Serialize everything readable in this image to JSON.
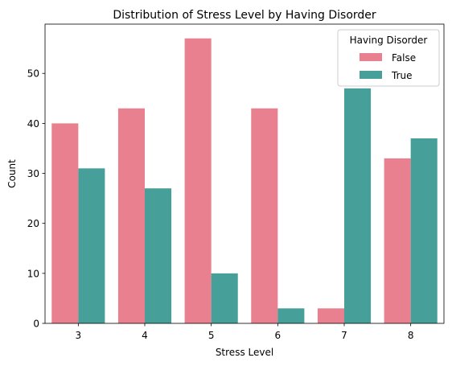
{
  "chart_data": {
    "type": "bar",
    "title": "Distribution of Stress Level by Having Disorder",
    "xlabel": "Stress Level",
    "ylabel": "Count",
    "categories": [
      "3",
      "4",
      "5",
      "6",
      "7",
      "8"
    ],
    "series": [
      {
        "name": "False",
        "color": "#e8808f",
        "values": [
          40,
          43,
          57,
          43,
          3,
          33
        ]
      },
      {
        "name": "True",
        "color": "#469f98",
        "values": [
          31,
          27,
          10,
          3,
          47,
          37
        ]
      }
    ],
    "ylim": [
      0,
      59.85
    ],
    "yticks": [
      0,
      10,
      20,
      30,
      40,
      50
    ],
    "grid": false,
    "legend": {
      "title": "Having Disorder",
      "position": "top-right"
    }
  }
}
